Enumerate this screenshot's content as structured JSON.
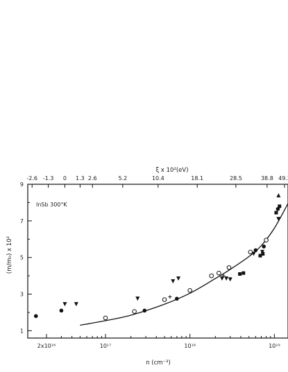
{
  "chart_data": {
    "type": "scatter",
    "title": "",
    "annotation": "InSb 300°K",
    "xlabel": "n (cm⁻³)",
    "ylabel": "(m/m₀) x 10²",
    "top_xlabel": "ξ x 10²(eV)",
    "x_scale": "log",
    "xlim": [
      1.2e+16,
      1.45e+19
    ],
    "ylim": [
      0.6,
      9
    ],
    "grid": false,
    "x_ticks": [
      {
        "value": 2e+16,
        "label": "2x10¹⁶"
      },
      {
        "value": 1e+17,
        "label": "10¹⁷"
      },
      {
        "value": 1e+18,
        "label": "10¹⁸"
      },
      {
        "value": 1e+19,
        "label": "10¹⁹"
      }
    ],
    "y_ticks": [
      {
        "value": 1,
        "label": "1"
      },
      {
        "value": 3,
        "label": "3"
      },
      {
        "value": 5,
        "label": "5"
      },
      {
        "value": 7,
        "label": "7"
      },
      {
        "value": 9,
        "label": "9"
      }
    ],
    "top_ticks": [
      {
        "n": 1.35e+16,
        "label": "-2.6"
      },
      {
        "n": 2.1e+16,
        "label": "-1.3"
      },
      {
        "n": 3.3e+16,
        "label": "0"
      },
      {
        "n": 5e+16,
        "label": "1.3"
      },
      {
        "n": 7e+16,
        "label": "2.6"
      },
      {
        "n": 1.6e+17,
        "label": "5.2"
      },
      {
        "n": 4.2e+17,
        "label": "10.4"
      },
      {
        "n": 1.22e+18,
        "label": "18.1"
      },
      {
        "n": 3.5e+18,
        "label": "28.5"
      },
      {
        "n": 8.2e+18,
        "label": "38.8"
      },
      {
        "n": 1.32e+19,
        "label": "49.2"
      }
    ],
    "series": [
      {
        "marker": "open-circle",
        "points": [
          [
            1e+17,
            1.7
          ],
          [
            2.2e+17,
            2.05
          ],
          [
            5e+17,
            2.7
          ],
          [
            1e+18,
            3.2
          ],
          [
            1.8e+18,
            4.0
          ],
          [
            2.2e+18,
            4.15
          ],
          [
            2.9e+18,
            4.45
          ],
          [
            5.2e+18,
            5.3
          ],
          [
            8e+18,
            5.95
          ]
        ]
      },
      {
        "marker": "filled-circle",
        "points": [
          [
            1.5e+16,
            1.8
          ],
          [
            3e+16,
            2.1
          ],
          [
            2.9e+17,
            2.1
          ],
          [
            7e+17,
            2.75
          ],
          [
            6e+18,
            5.4
          ],
          [
            7.5e+18,
            5.6
          ],
          [
            1.1e+19,
            7.65
          ]
        ]
      },
      {
        "marker": "filled-triangle-down",
        "points": [
          [
            3.3e+16,
            2.45
          ],
          [
            4.5e+16,
            2.45
          ],
          [
            2.4e+17,
            2.75
          ],
          [
            6.3e+17,
            3.7
          ],
          [
            7.3e+17,
            3.85
          ],
          [
            2.4e+18,
            3.85
          ],
          [
            2.7e+18,
            3.85
          ],
          [
            3e+18,
            3.8
          ],
          [
            5.7e+18,
            5.2
          ],
          [
            7.2e+18,
            5.3
          ],
          [
            1.12e+19,
            7.1
          ]
        ]
      },
      {
        "marker": "filled-square",
        "points": [
          [
            3.9e+18,
            4.1
          ],
          [
            4.3e+18,
            4.15
          ],
          [
            6.8e+18,
            5.1
          ],
          [
            7.3e+18,
            5.2
          ],
          [
            1.05e+19,
            7.45
          ],
          [
            1.15e+19,
            7.8
          ]
        ]
      },
      {
        "marker": "filled-triangle-up",
        "points": [
          [
            1.12e+19,
            8.4
          ]
        ]
      },
      {
        "marker": "cross",
        "points": [
          [
            5.8e+17,
            2.85
          ],
          [
            2.5e+18,
            4.0
          ]
        ]
      }
    ],
    "fit_curve": {
      "points": [
        [
          5e+16,
          1.3
        ],
        [
          1e+17,
          1.55
        ],
        [
          2e+17,
          1.85
        ],
        [
          5e+17,
          2.45
        ],
        [
          1e+18,
          3.05
        ],
        [
          2e+18,
          3.85
        ],
        [
          3e+18,
          4.35
        ],
        [
          5e+18,
          5.05
        ],
        [
          7e+18,
          5.65
        ],
        [
          1e+19,
          6.6
        ],
        [
          1.45e+19,
          7.95
        ]
      ]
    }
  }
}
